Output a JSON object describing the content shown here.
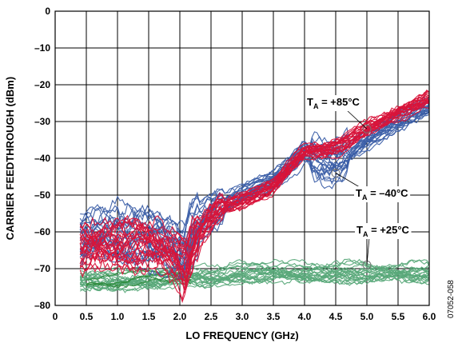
{
  "chart_data": {
    "type": "line",
    "title": "",
    "xlabel": "LO FREQUENCY (GHz)",
    "ylabel": "CARRIER FEEDTHROUGH (dBm)",
    "xlim": [
      0,
      6
    ],
    "ylim": [
      -80,
      0
    ],
    "x_ticks": [
      "0",
      "0.5",
      "1.0",
      "1.5",
      "2.0",
      "2.5",
      "3.0",
      "3.5",
      "4.0",
      "4.5",
      "5.0",
      "5.5",
      "6.0"
    ],
    "y_ticks": [
      "0",
      "–10",
      "–20",
      "–30",
      "–40",
      "–50",
      "–60",
      "–70",
      "–80"
    ],
    "grid": true,
    "figure_id": "07052-058",
    "annotations": [
      {
        "label_main": "T",
        "label_sub": "A",
        "label_rest": " = +85°C",
        "color": "#d8143a",
        "x": 5.0,
        "y": -32
      },
      {
        "label_main": "T",
        "label_sub": "A",
        "label_rest": " = –40°C",
        "color": "#3c5fa8",
        "x": 4.5,
        "y": -44
      },
      {
        "label_main": "T",
        "label_sub": "A",
        "label_rest": " = +25°C",
        "color": "#5aa97a",
        "x": 5.0,
        "y": -69
      }
    ],
    "series": [
      {
        "color": "#3c5fa8",
        "count": 24,
        "variation": "blue",
        "x": [
          0.4,
          0.5,
          0.7,
          1.0,
          1.3,
          1.6,
          1.8,
          2.0,
          2.1,
          2.2,
          2.4,
          2.6,
          3.0,
          3.5,
          3.8,
          4.0,
          4.2,
          4.4,
          4.6,
          5.0,
          5.5,
          6.0
        ],
        "y": [
          -62,
          -62,
          -61,
          -60,
          -61,
          -62,
          -63,
          -66,
          -67,
          -60,
          -56,
          -53,
          -50,
          -46,
          -42,
          -38,
          -40,
          -41,
          -40,
          -35,
          -30,
          -26
        ]
      },
      {
        "color": "#d8143a",
        "count": 24,
        "variation": "red",
        "x": [
          0.4,
          0.5,
          0.7,
          1.0,
          1.3,
          1.6,
          1.8,
          2.0,
          2.1,
          2.2,
          2.4,
          2.6,
          3.0,
          3.5,
          3.8,
          4.0,
          4.3,
          4.6,
          5.0,
          5.5,
          6.0
        ],
        "y": [
          -66,
          -66,
          -65,
          -64,
          -64,
          -65,
          -67,
          -69,
          -72,
          -64,
          -58,
          -54,
          -52,
          -48,
          -42,
          -38,
          -38,
          -37,
          -32,
          -28,
          -24
        ]
      },
      {
        "color": "#5aa97a",
        "count": 22,
        "variation": "green",
        "x": [
          0.4,
          0.5,
          1.0,
          1.5,
          2.0,
          2.5,
          3.0,
          3.5,
          4.0,
          4.5,
          5.0,
          5.5,
          6.0
        ],
        "y": [
          -73,
          -73,
          -73,
          -73,
          -72,
          -72,
          -71,
          -71,
          -71,
          -71,
          -71,
          -71,
          -71
        ]
      },
      {
        "color": "#2e8b3c",
        "count": 4,
        "variation": "green-dark",
        "x": [
          0.5,
          1.0,
          1.5,
          2.0,
          2.2
        ],
        "y": [
          -74,
          -73,
          -72,
          -72,
          -73
        ]
      }
    ]
  }
}
